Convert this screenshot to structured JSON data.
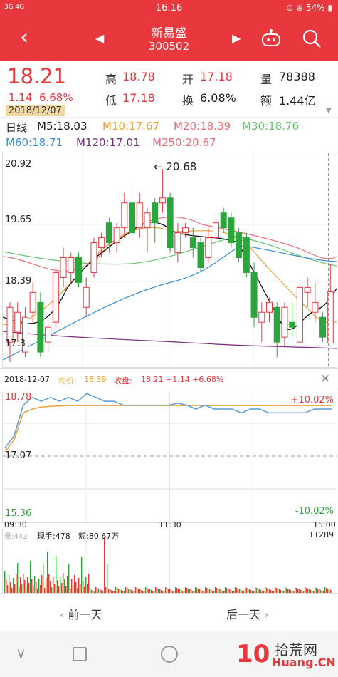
{
  "status": {
    "signal": "3G  4G",
    "time": "16:16",
    "battery": "54%"
  },
  "header": {
    "name": "新易盛",
    "code": "300502",
    "back_icon": "chevron-left-icon",
    "prev_icon": "triangle-left-icon",
    "next_icon": "triangle-right-icon",
    "robot_icon": "robot-icon",
    "search_icon": "search-icon"
  },
  "quote": {
    "price": "18.21",
    "change": "1.14",
    "change_pct": "6.68%",
    "date": "2018/12/07",
    "high_label": "高",
    "high": "18.78",
    "open_label": "开",
    "open": "17.18",
    "volume_label": "量",
    "volume": "78388",
    "low_label": "低",
    "low": "17.18",
    "turnover_label": "换",
    "turnover": "6.08%",
    "amount_label": "额",
    "amount": "1.44亿"
  },
  "ma_legend": {
    "period": "日线",
    "m5": "M5:18.03",
    "m10": "M10:17.67",
    "m20": "M20:18.39",
    "m30": "M30:18.76",
    "m60": "M60:18.71",
    "m120": "M120:17.01",
    "m250": "M250:20.67"
  },
  "colors": {
    "up": "#e8383d",
    "down": "#2aa73b",
    "m5": "#111111",
    "m10": "#e8a23a",
    "m20": "#e8707a",
    "m30": "#69c36f",
    "m60": "#3b8fd4",
    "m120": "#7b2a80"
  },
  "kline": {
    "y_ticks": [
      "20.92",
      "19.65",
      "18.39",
      "17.3"
    ],
    "max_annotation": "20.68",
    "candles": [
      {
        "o": 17.2,
        "c": 17.9,
        "h": 18.0,
        "l": 16.8
      },
      {
        "o": 17.4,
        "c": 17.8,
        "h": 18.0,
        "l": 17.2
      },
      {
        "o": 17.0,
        "c": 17.7,
        "h": 17.9,
        "l": 16.9
      },
      {
        "o": 17.8,
        "c": 18.2,
        "h": 18.4,
        "l": 17.6
      },
      {
        "o": 18.0,
        "c": 17.0,
        "h": 18.2,
        "l": 16.9
      },
      {
        "o": 17.2,
        "c": 17.5,
        "h": 17.6,
        "l": 17.0
      },
      {
        "o": 17.6,
        "c": 18.6,
        "h": 18.7,
        "l": 17.5
      },
      {
        "o": 18.5,
        "c": 18.9,
        "h": 19.1,
        "l": 18.3
      },
      {
        "o": 18.6,
        "c": 18.9,
        "h": 19.0,
        "l": 18.4
      },
      {
        "o": 18.9,
        "c": 18.4,
        "h": 19.0,
        "l": 18.3
      },
      {
        "o": 17.9,
        "c": 18.3,
        "h": 18.5,
        "l": 17.7
      },
      {
        "o": 18.6,
        "c": 19.2,
        "h": 19.3,
        "l": 18.5
      },
      {
        "o": 19.1,
        "c": 19.3,
        "h": 19.4,
        "l": 18.9
      },
      {
        "o": 19.6,
        "c": 19.2,
        "h": 19.7,
        "l": 19.0
      },
      {
        "o": 19.2,
        "c": 19.5,
        "h": 19.6,
        "l": 19.0
      },
      {
        "o": 19.5,
        "c": 20.0,
        "h": 20.2,
        "l": 19.3
      },
      {
        "o": 20.0,
        "c": 19.4,
        "h": 20.3,
        "l": 19.2
      },
      {
        "o": 19.5,
        "c": 20.0,
        "h": 20.2,
        "l": 19.3
      },
      {
        "o": 19.5,
        "c": 19.8,
        "h": 19.9,
        "l": 19.0
      },
      {
        "o": 20.0,
        "c": 19.6,
        "h": 20.1,
        "l": 19.2
      },
      {
        "o": 20.0,
        "c": 20.1,
        "h": 20.68,
        "l": 19.8
      },
      {
        "o": 20.1,
        "c": 19.1,
        "h": 20.2,
        "l": 19.0
      },
      {
        "o": 19.0,
        "c": 19.4,
        "h": 19.6,
        "l": 18.8
      },
      {
        "o": 19.4,
        "c": 19.5,
        "h": 19.6,
        "l": 19.3
      },
      {
        "o": 19.3,
        "c": 19.1,
        "h": 19.5,
        "l": 18.9
      },
      {
        "o": 19.2,
        "c": 18.7,
        "h": 19.3,
        "l": 18.6
      },
      {
        "o": 18.9,
        "c": 19.3,
        "h": 19.5,
        "l": 18.8
      },
      {
        "o": 19.3,
        "c": 19.6,
        "h": 19.8,
        "l": 19.2
      },
      {
        "o": 19.8,
        "c": 19.5,
        "h": 19.9,
        "l": 19.4
      },
      {
        "o": 19.7,
        "c": 19.2,
        "h": 19.8,
        "l": 19.1
      },
      {
        "o": 19.4,
        "c": 18.9,
        "h": 19.5,
        "l": 18.8
      },
      {
        "o": 19.3,
        "c": 18.6,
        "h": 19.4,
        "l": 18.5
      },
      {
        "o": 18.6,
        "c": 17.7,
        "h": 18.8,
        "l": 17.5
      },
      {
        "o": 17.6,
        "c": 17.8,
        "h": 18.0,
        "l": 17.2
      },
      {
        "o": 17.8,
        "c": 18.0,
        "h": 18.1,
        "l": 17.6
      },
      {
        "o": 17.9,
        "c": 17.2,
        "h": 18.0,
        "l": 16.9
      },
      {
        "o": 17.3,
        "c": 17.9,
        "h": 18.0,
        "l": 17.1
      },
      {
        "o": 17.6,
        "c": 17.5,
        "h": 18.0,
        "l": 17.3
      },
      {
        "o": 17.2,
        "c": 18.3,
        "h": 18.4,
        "l": 17.2
      },
      {
        "o": 18.2,
        "c": 18.3,
        "h": 18.5,
        "l": 17.9
      },
      {
        "o": 17.8,
        "c": 18.0,
        "h": 18.4,
        "l": 17.6
      },
      {
        "o": 17.7,
        "c": 17.3,
        "h": 17.8,
        "l": 17.2
      },
      {
        "o": 17.18,
        "c": 18.21,
        "h": 18.78,
        "l": 17.18
      }
    ]
  },
  "intraday": {
    "date": "2018-12-07",
    "avg_label": "均价:",
    "avg": "18.39",
    "close_label": "收盘:",
    "close": "18.21 +1.14 +6.68%",
    "top": "18.78",
    "mid": "17.07",
    "bottom": "15.36",
    "top_pct": "+10.02%",
    "bottom_pct": "-10.02%",
    "t_start": "09:30",
    "t_mid": "11:30",
    "t_end": "15:00",
    "price_line": [
      17.3,
      17.6,
      18.4,
      18.6,
      18.5,
      18.6,
      18.5,
      18.6,
      18.5,
      18.7,
      18.6,
      18.5,
      18.5,
      18.4,
      18.4,
      18.4,
      18.4,
      18.4,
      18.4,
      18.45,
      18.4,
      18.3,
      18.4,
      18.3,
      18.3,
      18.3,
      18.2,
      18.3,
      18.3,
      18.2,
      18.2,
      18.2,
      18.2,
      18.2,
      18.3,
      18.3,
      18.3
    ],
    "avg_line": [
      17.2,
      17.5,
      18.2,
      18.3,
      18.35,
      18.37,
      18.38,
      18.39,
      18.39,
      18.39,
      18.39,
      18.39,
      18.39,
      18.39,
      18.39,
      18.39,
      18.39,
      18.39,
      18.39,
      18.39,
      18.39,
      18.39,
      18.39,
      18.39,
      18.39,
      18.39,
      18.39,
      18.39,
      18.39,
      18.39,
      18.39,
      18.39,
      18.39,
      18.39,
      18.39,
      18.39,
      18.39
    ],
    "volume_label": "量:443",
    "current_hand": "现手:478",
    "amount": "额:80.67万",
    "vol_max": "11289"
  },
  "nav": {
    "prev_day": "前一天",
    "next_day": "后一天"
  },
  "watermark": {
    "brand": "拾荒网",
    "url": "Huang.CN"
  }
}
